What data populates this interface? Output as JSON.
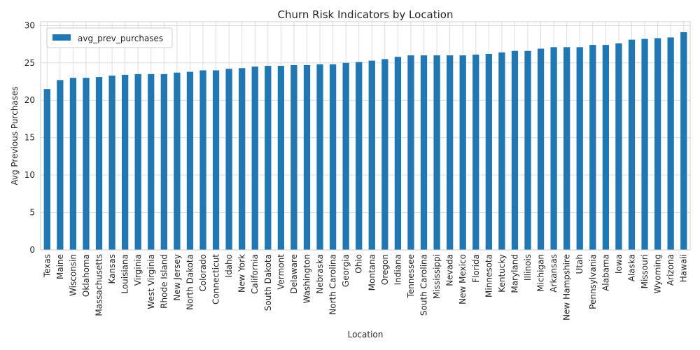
{
  "chart_data": {
    "type": "bar",
    "title": "Churn Risk Indicators by Location",
    "xlabel": "Location",
    "ylabel": "Avg Previous Purchases",
    "ylim": [
      0,
      30.5
    ],
    "yticks": [
      0,
      5,
      10,
      15,
      20,
      25,
      30
    ],
    "grid": true,
    "legend_position": "top-left",
    "bar_color": "#1f77b4",
    "series": [
      {
        "name": "avg_prev_purchases",
        "values": [
          21.5,
          22.7,
          23.0,
          23.0,
          23.1,
          23.3,
          23.4,
          23.5,
          23.5,
          23.5,
          23.7,
          23.8,
          24.0,
          24.0,
          24.2,
          24.3,
          24.5,
          24.6,
          24.6,
          24.7,
          24.7,
          24.8,
          24.8,
          25.0,
          25.1,
          25.3,
          25.5,
          25.8,
          26.0,
          26.0,
          26.0,
          26.0,
          26.0,
          26.1,
          26.2,
          26.4,
          26.6,
          26.6,
          26.9,
          27.1,
          27.1,
          27.1,
          27.4,
          27.4,
          27.6,
          28.1,
          28.2,
          28.3,
          28.4,
          29.1
        ]
      }
    ],
    "categories": [
      "Texas",
      "Maine",
      "Wisconsin",
      "Oklahoma",
      "Massachusetts",
      "Kansas",
      "Louisiana",
      "Virginia",
      "West Virginia",
      "Rhode Island",
      "New Jersey",
      "North Dakota",
      "Colorado",
      "Connecticut",
      "Idaho",
      "New York",
      "California",
      "South Dakota",
      "Vermont",
      "Delaware",
      "Washington",
      "Nebraska",
      "North Carolina",
      "Georgia",
      "Ohio",
      "Montana",
      "Oregon",
      "Indiana",
      "Tennessee",
      "South Carolina",
      "Mississippi",
      "Nevada",
      "New Mexico",
      "Florida",
      "Minnesota",
      "Kentucky",
      "Maryland",
      "Illinois",
      "Michigan",
      "Arkansas",
      "New Hampshire",
      "Utah",
      "Pennsylvania",
      "Alabama",
      "Iowa",
      "Alaska",
      "Missouri",
      "Wyoming",
      "Arizona",
      "Hawaii"
    ]
  }
}
